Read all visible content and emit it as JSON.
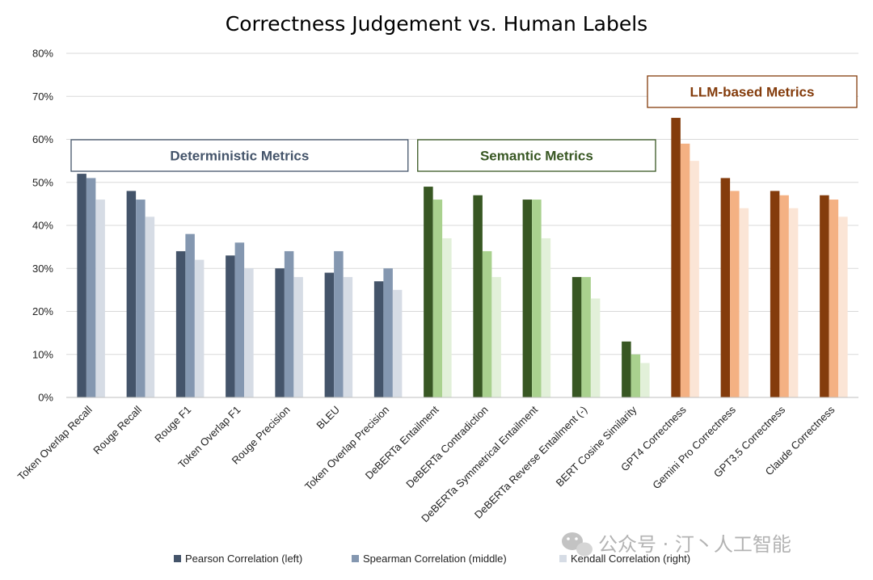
{
  "chart_data": {
    "type": "bar",
    "title": "Correctness Judgement vs. Human Labels",
    "xlabel": "",
    "ylabel": "",
    "ylim": [
      0,
      80
    ],
    "yticks": [
      "0%",
      "10%",
      "20%",
      "30%",
      "40%",
      "50%",
      "60%",
      "70%",
      "80%"
    ],
    "grid": true,
    "legend_position": "bottom",
    "categories": [
      "Token Overlap Recall",
      "Rouge Recall",
      "Rouge F1",
      "Token Overlap F1",
      "Rouge Precision",
      "BLEU",
      "Token Overlap Precision",
      "DeBERTa Entailment",
      "DeBERTa Contradiction",
      "DeBERTa Symmetrical Entailment",
      "DeBERTa Reverse Entailment (-)",
      "BERT Cosine Similarity",
      "GPT4 Correctness",
      "Gemini Pro Correctness",
      "GPT3.5 Correctness",
      "Claude Correctness"
    ],
    "series": [
      {
        "name": "Pearson Correlation (left)",
        "values": [
          52,
          48,
          34,
          33,
          30,
          29,
          27,
          49,
          47,
          46,
          28,
          13,
          65,
          51,
          48,
          47
        ]
      },
      {
        "name": "Spearman Correlation (middle)",
        "values": [
          51,
          46,
          38,
          36,
          34,
          34,
          30,
          46,
          34,
          46,
          28,
          10,
          59,
          48,
          47,
          46
        ]
      },
      {
        "name": "Kendall Correlation (right)",
        "values": [
          46,
          42,
          32,
          30,
          28,
          28,
          25,
          37,
          28,
          37,
          23,
          8,
          55,
          44,
          44,
          42
        ]
      }
    ],
    "groups": [
      {
        "label": "Deterministic Metrics",
        "start": 0,
        "end": 6,
        "colors": [
          "#44546a",
          "#8497b0",
          "#d6dce5"
        ],
        "border": "#44546a",
        "text": "#44546a"
      },
      {
        "label": "Semantic Metrics",
        "start": 7,
        "end": 11,
        "colors": [
          "#385723",
          "#a9d18e",
          "#e2f0d9"
        ],
        "border": "#385723",
        "text": "#385723"
      },
      {
        "label": "LLM-based Metrics",
        "start": 12,
        "end": 15,
        "colors": [
          "#843c0c",
          "#f4b183",
          "#fbe5d6"
        ],
        "border": "#843c0c",
        "text": "#843c0c"
      }
    ]
  },
  "legend": {
    "items": [
      {
        "label": "Pearson Correlation (left)",
        "color": "#44546a"
      },
      {
        "label": "Spearman Correlation (middle)",
        "color": "#8497b0"
      },
      {
        "label": "Kendall Correlation (right)",
        "color": "#d6dce5"
      }
    ]
  },
  "watermark": {
    "text": "公众号 · 汀丶人工智能",
    "icon": "wechat-icon"
  }
}
